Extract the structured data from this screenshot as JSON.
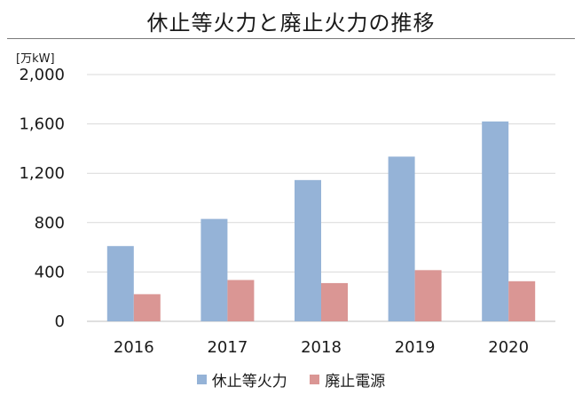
{
  "title": "休止等火力と廃止火力の推移",
  "unit_label": "[万kW]",
  "chart_data": {
    "type": "bar",
    "categories": [
      "2016",
      "2017",
      "2018",
      "2019",
      "2020"
    ],
    "series": [
      {
        "name": "休止等火力",
        "color": "#95B3D7",
        "values": [
          610,
          830,
          1145,
          1335,
          1620
        ]
      },
      {
        "name": "廃止電源",
        "color": "#DA9694",
        "values": [
          220,
          335,
          310,
          415,
          325
        ]
      }
    ],
    "yticks": [
      "0",
      "400",
      "800",
      "1,200",
      "1,600",
      "2,000"
    ],
    "ylim": [
      0,
      2000
    ],
    "grid": true,
    "legend": "bottom"
  }
}
